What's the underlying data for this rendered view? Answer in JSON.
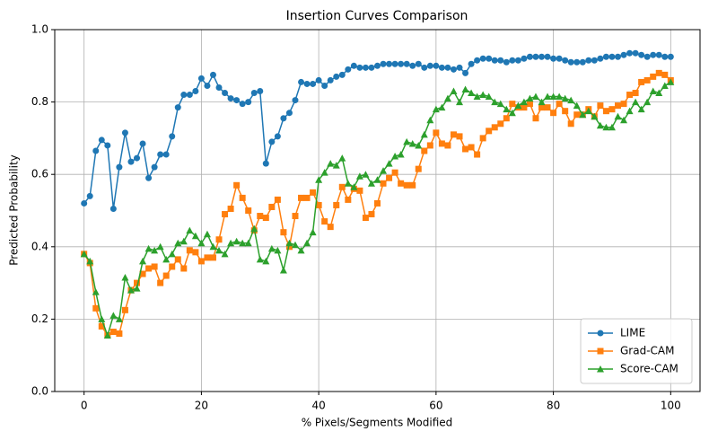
{
  "chart_data": {
    "type": "line",
    "title": "Insertion Curves Comparison",
    "x_label": "% Pixels/Segments Modified",
    "y_label": "Predicted Probability",
    "x": [
      0,
      1,
      2,
      3,
      4,
      5,
      6,
      7,
      8,
      9,
      10,
      11,
      12,
      13,
      14,
      15,
      16,
      17,
      18,
      19,
      20,
      21,
      22,
      23,
      24,
      25,
      26,
      27,
      28,
      29,
      30,
      31,
      32,
      33,
      34,
      35,
      36,
      37,
      38,
      39,
      40,
      41,
      42,
      43,
      44,
      45,
      46,
      47,
      48,
      49,
      50,
      51,
      52,
      53,
      54,
      55,
      56,
      57,
      58,
      59,
      60,
      61,
      62,
      63,
      64,
      65,
      66,
      67,
      68,
      69,
      70,
      71,
      72,
      73,
      74,
      75,
      76,
      77,
      78,
      79,
      80,
      81,
      82,
      83,
      84,
      85,
      86,
      87,
      88,
      89,
      90,
      91,
      92,
      93,
      94,
      95,
      96,
      97,
      98,
      99,
      100
    ],
    "series": [
      {
        "name": "LIME",
        "color": "#1f77b4",
        "marker": "circle",
        "values": [
          0.52,
          0.54,
          0.665,
          0.695,
          0.68,
          0.505,
          0.62,
          0.715,
          0.635,
          0.645,
          0.685,
          0.59,
          0.62,
          0.655,
          0.655,
          0.705,
          0.785,
          0.82,
          0.82,
          0.83,
          0.865,
          0.845,
          0.875,
          0.84,
          0.825,
          0.81,
          0.805,
          0.795,
          0.8,
          0.825,
          0.83,
          0.63,
          0.69,
          0.705,
          0.755,
          0.77,
          0.805,
          0.855,
          0.85,
          0.85,
          0.86,
          0.845,
          0.86,
          0.87,
          0.875,
          0.89,
          0.9,
          0.895,
          0.895,
          0.895,
          0.9,
          0.905,
          0.905,
          0.905,
          0.905,
          0.905,
          0.9,
          0.905,
          0.895,
          0.9,
          0.9,
          0.895,
          0.895,
          0.89,
          0.895,
          0.88,
          0.905,
          0.915,
          0.92,
          0.92,
          0.915,
          0.915,
          0.91,
          0.915,
          0.915,
          0.92,
          0.925,
          0.925,
          0.925,
          0.925,
          0.92,
          0.92,
          0.915,
          0.91,
          0.91,
          0.91,
          0.915,
          0.915,
          0.92,
          0.925,
          0.925,
          0.925,
          0.93,
          0.935,
          0.935,
          0.93,
          0.925,
          0.93,
          0.93,
          0.925,
          0.925
        ]
      },
      {
        "name": "Grad-CAM",
        "color": "#ff7f0e",
        "marker": "square",
        "values": [
          0.38,
          0.355,
          0.23,
          0.18,
          0.155,
          0.165,
          0.16,
          0.225,
          0.28,
          0.3,
          0.325,
          0.34,
          0.345,
          0.3,
          0.32,
          0.345,
          0.365,
          0.34,
          0.39,
          0.385,
          0.36,
          0.37,
          0.37,
          0.42,
          0.49,
          0.505,
          0.57,
          0.535,
          0.5,
          0.445,
          0.485,
          0.48,
          0.51,
          0.53,
          0.44,
          0.4,
          0.485,
          0.535,
          0.535,
          0.55,
          0.515,
          0.47,
          0.455,
          0.515,
          0.565,
          0.53,
          0.56,
          0.555,
          0.48,
          0.49,
          0.52,
          0.575,
          0.59,
          0.605,
          0.575,
          0.57,
          0.57,
          0.615,
          0.665,
          0.68,
          0.715,
          0.685,
          0.68,
          0.71,
          0.705,
          0.67,
          0.675,
          0.655,
          0.7,
          0.72,
          0.73,
          0.74,
          0.755,
          0.795,
          0.785,
          0.785,
          0.795,
          0.755,
          0.785,
          0.785,
          0.77,
          0.795,
          0.775,
          0.74,
          0.765,
          0.765,
          0.78,
          0.76,
          0.79,
          0.775,
          0.78,
          0.79,
          0.795,
          0.82,
          0.825,
          0.855,
          0.86,
          0.87,
          0.88,
          0.875,
          0.86
        ]
      },
      {
        "name": "Score-CAM",
        "color": "#2ca02c",
        "marker": "triangle",
        "values": [
          0.38,
          0.36,
          0.275,
          0.2,
          0.155,
          0.21,
          0.2,
          0.315,
          0.28,
          0.285,
          0.36,
          0.395,
          0.39,
          0.4,
          0.365,
          0.38,
          0.41,
          0.415,
          0.445,
          0.43,
          0.41,
          0.435,
          0.4,
          0.39,
          0.38,
          0.41,
          0.415,
          0.41,
          0.41,
          0.45,
          0.365,
          0.36,
          0.395,
          0.39,
          0.335,
          0.41,
          0.405,
          0.39,
          0.41,
          0.44,
          0.585,
          0.605,
          0.63,
          0.625,
          0.645,
          0.575,
          0.565,
          0.595,
          0.6,
          0.575,
          0.585,
          0.61,
          0.63,
          0.65,
          0.655,
          0.69,
          0.685,
          0.68,
          0.71,
          0.75,
          0.78,
          0.785,
          0.81,
          0.83,
          0.8,
          0.835,
          0.825,
          0.815,
          0.82,
          0.815,
          0.8,
          0.795,
          0.78,
          0.77,
          0.79,
          0.8,
          0.81,
          0.815,
          0.8,
          0.815,
          0.815,
          0.815,
          0.81,
          0.805,
          0.79,
          0.765,
          0.775,
          0.76,
          0.735,
          0.73,
          0.73,
          0.76,
          0.75,
          0.775,
          0.8,
          0.78,
          0.8,
          0.83,
          0.825,
          0.845,
          0.855
        ]
      }
    ],
    "xlim": [
      -5,
      105
    ],
    "ylim": [
      0,
      1
    ],
    "xticks": [
      0,
      20,
      40,
      60,
      80,
      100
    ],
    "yticks": [
      {
        "value": 0,
        "label": "0.0"
      },
      {
        "value": 0.2,
        "label": "0.2"
      },
      {
        "value": 0.4,
        "label": "0.4"
      },
      {
        "value": 0.6,
        "label": "0.6"
      },
      {
        "value": 0.8,
        "label": "0.8"
      },
      {
        "value": 1,
        "label": "1.0"
      }
    ],
    "grid": true,
    "legend": "lower right"
  }
}
